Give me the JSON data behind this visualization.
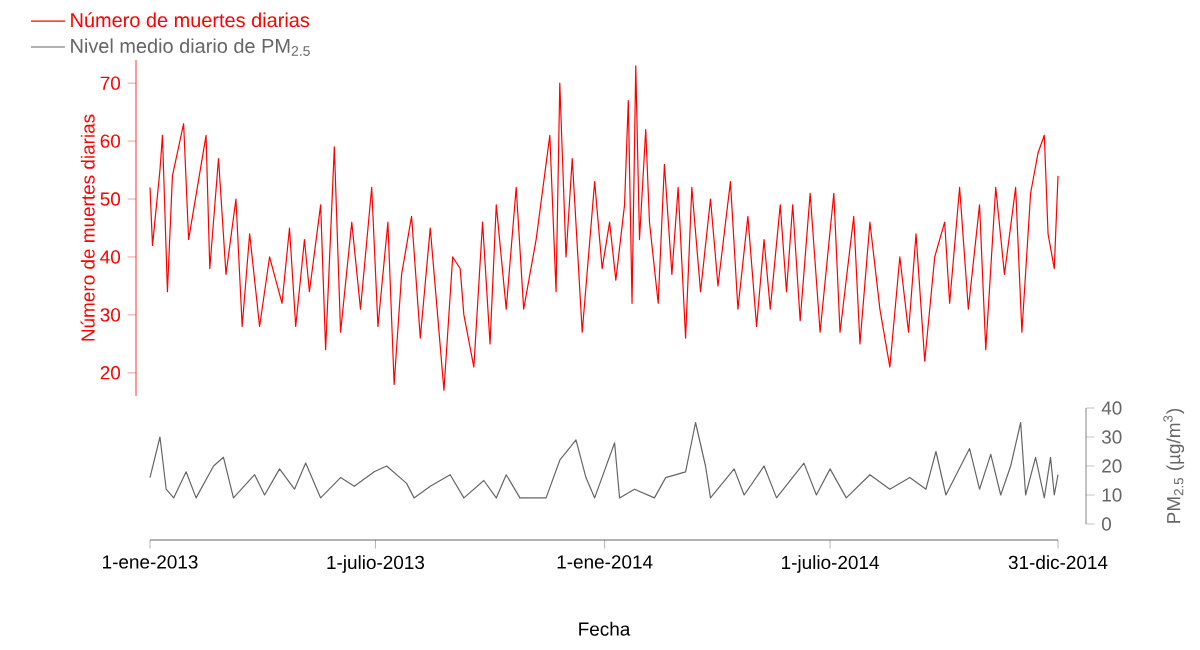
{
  "chart_data": [
    {
      "type": "line",
      "ylabel": "Número de muertes diarias",
      "xlim": [
        "2013-01-01",
        "2014-12-31"
      ],
      "ylim": [
        16,
        74
      ],
      "yticks": [
        20,
        30,
        40,
        50,
        60,
        70
      ],
      "tick_labels": "y",
      "legend": "top left",
      "marker": "none",
      "line_style": "solid",
      "series": [
        {
          "name": "Número de muertes diarias",
          "color": "#ff0000",
          "x": [
            "2013-01-01",
            "2013-01-03",
            "2013-01-09",
            "2013-01-11",
            "2013-01-15",
            "2013-01-19",
            "2013-01-28",
            "2013-02-01",
            "2013-02-15",
            "2013-02-18",
            "2013-02-25",
            "2013-03-03",
            "2013-03-11",
            "2013-03-16",
            "2013-03-22",
            "2013-03-30",
            "2013-04-07",
            "2013-04-17",
            "2013-04-23",
            "2013-04-28",
            "2013-05-05",
            "2013-05-09",
            "2013-05-18",
            "2013-05-22",
            "2013-05-29",
            "2013-06-03",
            "2013-06-12",
            "2013-06-19",
            "2013-06-28",
            "2013-07-03",
            "2013-07-11",
            "2013-07-16",
            "2013-07-22",
            "2013-07-30",
            "2013-08-06",
            "2013-08-14",
            "2013-08-25",
            "2013-09-01",
            "2013-09-07",
            "2013-09-10",
            "2013-09-18",
            "2013-09-25",
            "2013-10-01",
            "2013-10-06",
            "2013-10-14",
            "2013-10-22",
            "2013-10-28",
            "2013-11-07",
            "2013-11-18",
            "2013-11-23",
            "2013-11-26",
            "2013-12-01",
            "2013-12-06",
            "2013-12-14",
            "2013-12-24",
            "2013-12-30",
            "2014-01-05",
            "2014-01-10",
            "2014-01-17",
            "2014-01-20",
            "2014-01-23",
            "2014-01-26",
            "2014-01-29",
            "2014-02-03",
            "2014-02-06",
            "2014-02-13",
            "2014-02-18",
            "2014-02-24",
            "2014-03-01",
            "2014-03-07",
            "2014-03-12",
            "2014-03-19",
            "2014-03-27",
            "2014-04-02",
            "2014-04-12",
            "2014-04-18",
            "2014-04-26",
            "2014-05-03",
            "2014-05-09",
            "2014-05-14",
            "2014-05-22",
            "2014-05-27",
            "2014-06-01",
            "2014-06-07",
            "2014-06-15",
            "2014-06-23",
            "2014-07-04",
            "2014-07-09",
            "2014-07-20",
            "2014-07-25",
            "2014-08-02",
            "2014-08-10",
            "2014-08-18",
            "2014-08-26",
            "2014-09-02",
            "2014-09-08",
            "2014-09-15",
            "2014-09-23",
            "2014-10-01",
            "2014-10-05",
            "2014-10-13",
            "2014-10-20",
            "2014-10-29",
            "2014-11-03",
            "2014-11-11",
            "2014-11-18",
            "2014-11-27",
            "2014-12-02",
            "2014-12-09",
            "2014-12-15",
            "2014-12-20",
            "2014-12-23",
            "2014-12-28",
            "2014-12-31"
          ],
          "values": [
            52,
            42,
            55,
            61,
            34,
            54,
            63,
            43,
            61,
            38,
            57,
            37,
            50,
            28,
            44,
            28,
            40,
            32,
            45,
            28,
            43,
            34,
            49,
            24,
            59,
            27,
            46,
            31,
            52,
            28,
            46,
            18,
            37,
            47,
            26,
            45,
            17,
            40,
            38,
            30,
            21,
            46,
            25,
            49,
            31,
            52,
            31,
            43,
            61,
            34,
            70,
            40,
            57,
            27,
            53,
            38,
            46,
            36,
            49,
            67,
            32,
            73,
            43,
            62,
            46,
            32,
            56,
            37,
            52,
            26,
            52,
            34,
            50,
            35,
            53,
            31,
            47,
            28,
            43,
            31,
            49,
            34,
            49,
            29,
            51,
            27,
            51,
            27,
            47,
            25,
            46,
            31,
            21,
            40,
            27,
            44,
            22,
            40,
            46,
            32,
            52,
            31,
            49,
            24,
            52,
            37,
            52,
            27,
            51,
            58,
            61,
            44,
            38,
            54
          ]
        }
      ]
    },
    {
      "type": "line",
      "xlabel": "Fecha",
      "y2label": "PM$_{2.5}$ (µg/m$^{3}$)",
      "xlim": [
        "2013-01-01",
        "2014-12-31"
      ],
      "xticks": [
        {
          "value": "2013-01-01",
          "label": "1-ene-2013"
        },
        {
          "value": "2013-07-01",
          "label": "1-julio-2013"
        },
        {
          "value": "2014-01-01",
          "label": "1-ene-2014"
        },
        {
          "value": "2014-07-01",
          "label": "1-julio-2014"
        },
        {
          "value": "2014-12-31",
          "label": "31-dic-2014"
        }
      ],
      "y2lim": [
        0,
        40
      ],
      "y2ticks": [
        0,
        10,
        20,
        30,
        40
      ],
      "legend": "top left",
      "marker": "none",
      "line_style": "solid",
      "series": [
        {
          "name": "Nivel medio diario de PM$_{2.5}$",
          "color": "#666666",
          "axis": "y2",
          "x": [
            "2013-01-01",
            "2013-01-09",
            "2013-01-14",
            "2013-01-20",
            "2013-01-30",
            "2013-02-07",
            "2013-02-21",
            "2013-03-01",
            "2013-03-09",
            "2013-03-26",
            "2013-04-03",
            "2013-04-15",
            "2013-04-27",
            "2013-05-06",
            "2013-05-18",
            "2013-06-03",
            "2013-06-14",
            "2013-06-30",
            "2013-07-10",
            "2013-07-26",
            "2013-08-01",
            "2013-08-14",
            "2013-08-30",
            "2013-09-10",
            "2013-09-26",
            "2013-10-06",
            "2013-10-14",
            "2013-10-25",
            "2013-11-05",
            "2013-11-15",
            "2013-11-26",
            "2013-12-09",
            "2013-12-17",
            "2013-12-24",
            "2014-01-09",
            "2014-01-13",
            "2014-01-25",
            "2014-02-10",
            "2014-02-19",
            "2014-03-07",
            "2014-03-15",
            "2014-03-23",
            "2014-03-27",
            "2014-04-15",
            "2014-04-23",
            "2014-05-09",
            "2014-05-19",
            "2014-06-10",
            "2014-06-20",
            "2014-07-01",
            "2014-07-14",
            "2014-08-02",
            "2014-08-18",
            "2014-09-03",
            "2014-09-16",
            "2014-09-24",
            "2014-10-02",
            "2014-10-21",
            "2014-10-29",
            "2014-11-07",
            "2014-11-15",
            "2014-11-23",
            "2014-12-01",
            "2014-12-05",
            "2014-12-13",
            "2014-12-20",
            "2014-12-25",
            "2014-12-28",
            "2014-12-31"
          ],
          "values": [
            16,
            30,
            12,
            9,
            18,
            9,
            20,
            23,
            9,
            17,
            10,
            19,
            12,
            21,
            9,
            16,
            13,
            18,
            20,
            14,
            9,
            13,
            17,
            9,
            15,
            9,
            17,
            9,
            9,
            9,
            22,
            29,
            16,
            9,
            28,
            9,
            12,
            9,
            16,
            18,
            35,
            20,
            9,
            19,
            10,
            20,
            9,
            21,
            10,
            19,
            9,
            17,
            12,
            16,
            12,
            25,
            10,
            26,
            12,
            24,
            10,
            20,
            35,
            10,
            23,
            9,
            23,
            10,
            17
          ]
        }
      ]
    }
  ]
}
